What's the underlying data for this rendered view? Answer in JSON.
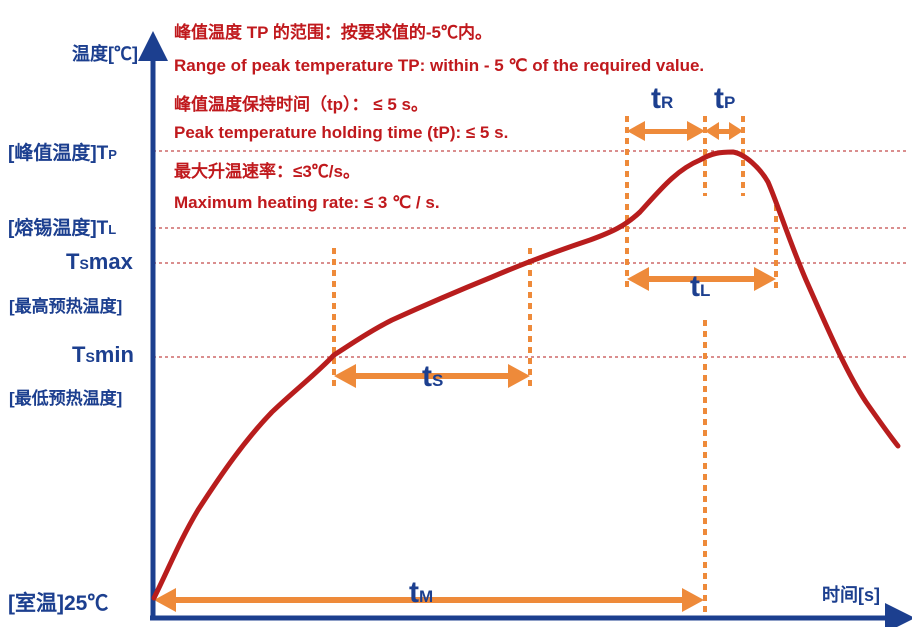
{
  "axes": {
    "y_title": "温度[℃]",
    "x_title": "时间[s]"
  },
  "levels": {
    "tp": {
      "label": "[峰值温度]T",
      "sub": "P"
    },
    "tl": {
      "label": "[熔锡温度]T",
      "sub": "L"
    },
    "tsmax": {
      "main": "T",
      "sub": "S",
      "tail": "max",
      "cn": "[最高预热温度]"
    },
    "tsmin": {
      "main": "T",
      "sub": "S",
      "tail": "min",
      "cn": "[最低预热温度]"
    },
    "room": "[室温]25℃"
  },
  "notes": [
    "峰值温度 TP 的范围：按要求值的-5℃内。",
    "Range of peak temperature TP: within - 5 ℃ of the required value.",
    "峰值温度保持时间（tp）：  ≤ 5 s。",
    "Peak temperature holding time (tP): ≤ 5 s.",
    "最大升温速率：≤3℃/s。",
    "Maximum heating rate: ≤ 3 ℃ / s."
  ],
  "segments": {
    "tr": {
      "main": "t",
      "sub": "R"
    },
    "tp": {
      "main": "t",
      "sub": "P"
    },
    "tl": {
      "main": "t",
      "sub": "L"
    },
    "ts": {
      "main": "t",
      "sub": "S"
    },
    "tm": {
      "main": "t",
      "sub": "M"
    }
  },
  "colors": {
    "curve": "#b81d1d",
    "axis": "#1c3f8f",
    "arrow": "#ee8a3a",
    "guide": "#c44a4a",
    "note_text": "#c0191d"
  }
}
